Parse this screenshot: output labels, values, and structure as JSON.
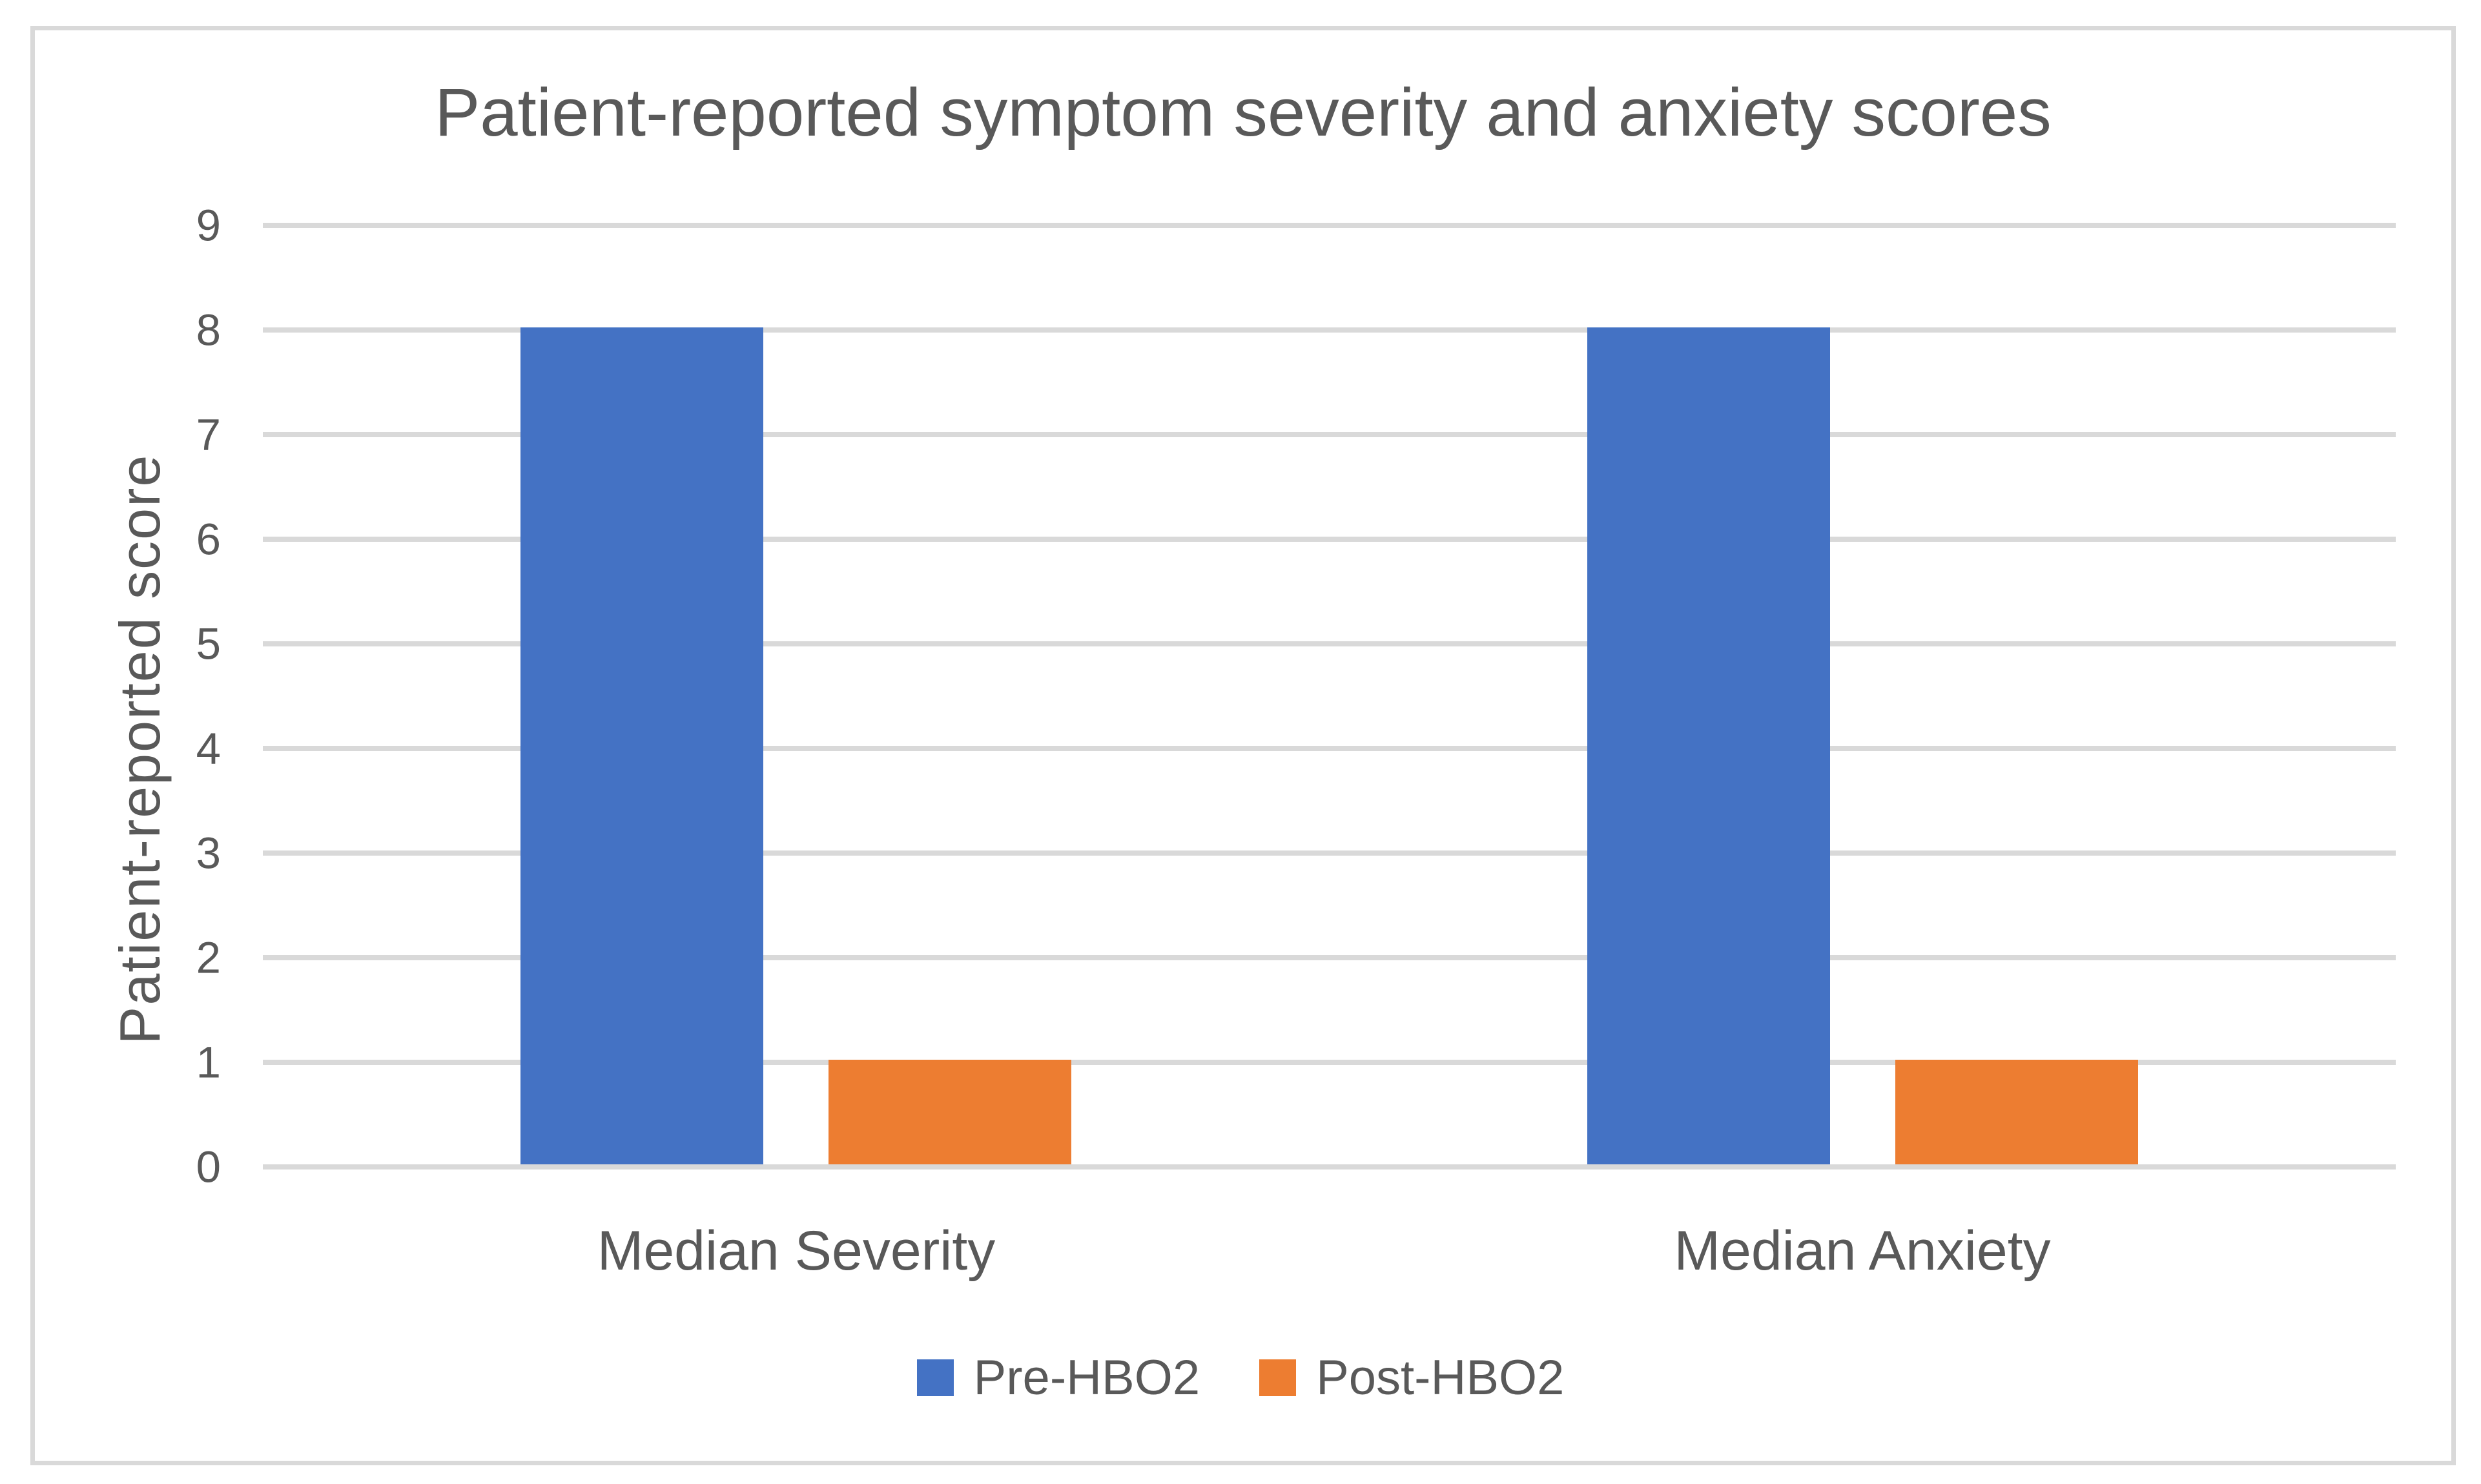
{
  "chart_data": {
    "type": "bar",
    "title": "Patient-reported symptom severity and anxiety scores",
    "xlabel": "",
    "ylabel": "Patient-reported score",
    "categories": [
      "Median Severity",
      "Median Anxiety"
    ],
    "series": [
      {
        "name": "Pre-HBO2",
        "color": "#4472C4",
        "values": [
          8,
          8
        ]
      },
      {
        "name": "Post-HBO2",
        "color": "#ED7D31",
        "values": [
          1,
          1
        ]
      }
    ],
    "ylim": [
      0,
      9
    ],
    "ytick_step": 1,
    "ytick_labels": [
      "0",
      "1",
      "2",
      "3",
      "4",
      "5",
      "6",
      "7",
      "8",
      "9"
    ],
    "grid": "horizontal",
    "legend_position": "bottom",
    "legend": [
      {
        "label": "Pre-HBO2",
        "color": "#4472C4"
      },
      {
        "label": "Post-HBO2",
        "color": "#ED7D31"
      }
    ],
    "colors": {
      "background": "#FFFFFF",
      "frame_border": "#D9D9D9",
      "gridline": "#D9D9D9",
      "text": "#595959"
    }
  }
}
